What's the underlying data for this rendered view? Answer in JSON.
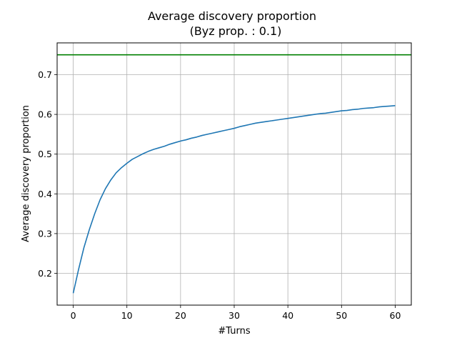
{
  "chart_data": {
    "type": "line",
    "title": "Average discovery proportion",
    "subtitle": "(Byz prop. : 0.1)",
    "xlabel": "#Turns",
    "ylabel": "Average discovery proportion",
    "xlim": [
      -3,
      63
    ],
    "ylim": [
      0.12,
      0.78
    ],
    "xticks": [
      0,
      10,
      20,
      30,
      40,
      50,
      60
    ],
    "yticks": [
      0.2,
      0.3,
      0.4,
      0.5,
      0.6,
      0.7
    ],
    "xtick_labels": [
      "0",
      "10",
      "20",
      "30",
      "40",
      "50",
      "60"
    ],
    "ytick_labels": [
      "0.2",
      "0.3",
      "0.4",
      "0.5",
      "0.6",
      "0.7"
    ],
    "grid": true,
    "series": [
      {
        "color": "#1f77b4",
        "x": [
          0,
          1,
          2,
          3,
          4,
          5,
          6,
          7,
          8,
          9,
          10,
          11,
          12,
          13,
          14,
          15,
          16,
          17,
          18,
          19,
          20,
          21,
          22,
          23,
          24,
          25,
          26,
          27,
          28,
          29,
          30,
          31,
          32,
          33,
          34,
          35,
          36,
          37,
          38,
          39,
          40,
          41,
          42,
          43,
          44,
          45,
          46,
          47,
          48,
          49,
          50,
          51,
          52,
          53,
          54,
          55,
          56,
          57,
          58,
          59,
          60
        ],
        "values": [
          0.15,
          0.21,
          0.265,
          0.31,
          0.35,
          0.385,
          0.413,
          0.435,
          0.453,
          0.466,
          0.477,
          0.487,
          0.494,
          0.501,
          0.507,
          0.512,
          0.516,
          0.52,
          0.525,
          0.529,
          0.533,
          0.536,
          0.54,
          0.543,
          0.547,
          0.55,
          0.553,
          0.556,
          0.559,
          0.562,
          0.565,
          0.569,
          0.572,
          0.575,
          0.578,
          0.58,
          0.582,
          0.584,
          0.586,
          0.588,
          0.59,
          0.592,
          0.594,
          0.596,
          0.598,
          0.6,
          0.602,
          0.603,
          0.605,
          0.607,
          0.609,
          0.61,
          0.612,
          0.613,
          0.615,
          0.616,
          0.617,
          0.619,
          0.62,
          0.621,
          0.622
        ]
      }
    ],
    "reference_line": {
      "y": 0.75,
      "color": "#008000"
    }
  }
}
